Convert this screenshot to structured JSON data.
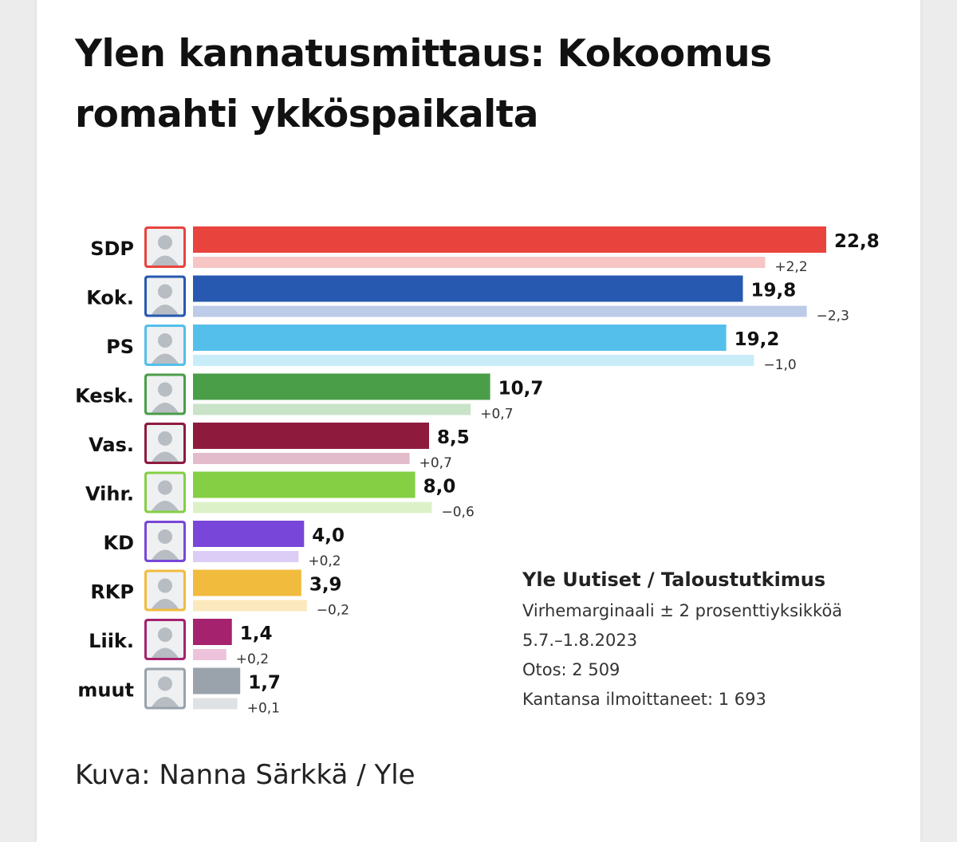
{
  "title": "Ylen kannatusmittaus: Kokoomus romahti ykköspaikalta",
  "chart_data": {
    "type": "bar",
    "orientation": "horizontal",
    "categories": [
      "SDP",
      "Kok.",
      "PS",
      "Kesk.",
      "Vas.",
      "Vihr.",
      "KD",
      "RKP",
      "Liik.",
      "muut"
    ],
    "values": [
      22.8,
      19.8,
      19.2,
      10.7,
      8.5,
      8.0,
      4.0,
      3.9,
      1.4,
      1.7
    ],
    "value_labels": [
      "22,8",
      "19,8",
      "19,2",
      "10,7",
      "8,5",
      "8,0",
      "4,0",
      "3,9",
      "1,4",
      "1,7"
    ],
    "changes": [
      2.2,
      -2.3,
      -1.0,
      0.7,
      0.7,
      -0.6,
      0.2,
      -0.2,
      0.2,
      0.1
    ],
    "change_labels": [
      "+2,2",
      "−2,3",
      "−1,0",
      "+0,7",
      "+0,7",
      "−0,6",
      "+0,2",
      "−0,2",
      "+0,2",
      "+0,1"
    ],
    "previous_values": [
      20.6,
      22.1,
      20.2,
      10.0,
      7.8,
      8.6,
      3.8,
      4.1,
      1.2,
      1.6
    ],
    "colors": [
      "#e8443d",
      "#2759b0",
      "#54bfea",
      "#4a9e48",
      "#8e1b3e",
      "#85cf44",
      "#7847d9",
      "#f1bb3e",
      "#a5236e",
      "#9aa3ab"
    ],
    "light_colors": [
      "#f7c5c4",
      "#bccbe8",
      "#c9ecf9",
      "#c9e3c8",
      "#e2bcca",
      "#dcf1c8",
      "#dccdf6",
      "#fbe9bd",
      "#edc3db",
      "#dfe2e5"
    ],
    "xlim": [
      0,
      22.8
    ],
    "grid": false
  },
  "info": {
    "heading": "Yle Uutiset / Taloustutkimus",
    "lines": [
      "Virhemarginaali ± 2 prosenttiyksikköä",
      "5.7.–1.8.2023",
      "Otos: 2 509",
      "Kantansa ilmoittaneet: 1 693"
    ]
  },
  "caption": "Kuva: Nanna Särkkä / Yle"
}
